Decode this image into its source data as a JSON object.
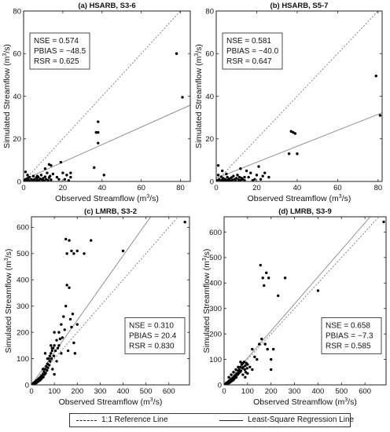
{
  "chart_data": [
    {
      "type": "scatter",
      "title": "(a) HSARB, S3-6",
      "xlabel": "Observed Streamflow (m3/s)",
      "ylabel": "Simulated Streamflow (m3/s)",
      "xlim": [
        0,
        85
      ],
      "ylim": [
        0,
        80
      ],
      "xticks": [
        0,
        20,
        40,
        60,
        80
      ],
      "yticks": [
        0,
        20,
        40,
        60,
        80
      ],
      "stats": [
        "NSE = 0.574",
        "PBIAS = −48.5",
        "RSR = 0.625"
      ],
      "stats_corner": "top-left",
      "regression": {
        "slope": 0.412,
        "intercept": 0.8
      },
      "points": [
        [
          0.5,
          0.5
        ],
        [
          1,
          1
        ],
        [
          1.5,
          0.3
        ],
        [
          2,
          1.5
        ],
        [
          2.5,
          0.8
        ],
        [
          3,
          0.2
        ],
        [
          3,
          2
        ],
        [
          4,
          1
        ],
        [
          4.5,
          0.5
        ],
        [
          5,
          2.5
        ],
        [
          5.5,
          1
        ],
        [
          6,
          0.3
        ],
        [
          6.5,
          1.8
        ],
        [
          7,
          0.8
        ],
        [
          7.5,
          2
        ],
        [
          8,
          0.5
        ],
        [
          8.5,
          1.2
        ],
        [
          9,
          3
        ],
        [
          9.5,
          0.8
        ],
        [
          10,
          1.5
        ],
        [
          10.5,
          0.3
        ],
        [
          11,
          2.2
        ],
        [
          11.5,
          1
        ],
        [
          12,
          4
        ],
        [
          12.5,
          0.5
        ],
        [
          13,
          1.8
        ],
        [
          13.5,
          2.5
        ],
        [
          14,
          0.8
        ],
        [
          1,
          4.5
        ],
        [
          2,
          3
        ],
        [
          7,
          2.5
        ],
        [
          11,
          6
        ],
        [
          13,
          8
        ],
        [
          14,
          7.5
        ],
        [
          15,
          3.5
        ],
        [
          17,
          2
        ],
        [
          18,
          1
        ],
        [
          19,
          9
        ],
        [
          20,
          4
        ],
        [
          21,
          1
        ],
        [
          22,
          3
        ],
        [
          23,
          0.5
        ],
        [
          24,
          4
        ],
        [
          24,
          2
        ],
        [
          36,
          6.5
        ],
        [
          37,
          23
        ],
        [
          38,
          28
        ],
        [
          38,
          23
        ],
        [
          38,
          18
        ],
        [
          41,
          3
        ],
        [
          78,
          60
        ],
        [
          81,
          39.5
        ]
      ]
    },
    {
      "type": "scatter",
      "title": "(b) HSARB, S5-7",
      "xlabel": "Observed Streamflow (m3/s)",
      "ylabel": "Simulated Streamflow (m3/s)",
      "xlim": [
        0,
        82
      ],
      "ylim": [
        0,
        80
      ],
      "xticks": [
        0,
        20,
        40,
        60,
        80
      ],
      "yticks": [
        0,
        20,
        40,
        60,
        80
      ],
      "stats": [
        "NSE = 0.581",
        "PBIAS = −40.0",
        "RSR = 0.647"
      ],
      "stats_corner": "top-left",
      "regression": {
        "slope": 0.375,
        "intercept": 1.5
      },
      "points": [
        [
          0.5,
          0.5
        ],
        [
          1,
          7.5
        ],
        [
          1.5,
          1
        ],
        [
          2,
          0.3
        ],
        [
          2.5,
          2.2
        ],
        [
          3,
          0.8
        ],
        [
          3.5,
          1.5
        ],
        [
          4,
          0.2
        ],
        [
          4.5,
          1
        ],
        [
          5,
          0.5
        ],
        [
          5.5,
          2
        ],
        [
          6,
          0.8
        ],
        [
          6.5,
          1.2
        ],
        [
          7,
          0.3
        ],
        [
          7.5,
          1.8
        ],
        [
          8,
          0.6
        ],
        [
          8.5,
          2.5
        ],
        [
          9,
          1
        ],
        [
          9.5,
          0.4
        ],
        [
          10,
          1.5
        ],
        [
          10.5,
          3
        ],
        [
          11,
          0.8
        ],
        [
          11.5,
          2
        ],
        [
          12,
          0.5
        ],
        [
          12.5,
          1.6
        ],
        [
          13,
          1
        ],
        [
          14,
          0.5
        ],
        [
          1,
          3
        ],
        [
          3,
          5
        ],
        [
          5,
          3.5
        ],
        [
          12,
          6
        ],
        [
          14,
          2
        ],
        [
          15,
          5
        ],
        [
          16,
          2
        ],
        [
          17,
          4
        ],
        [
          18,
          0.5
        ],
        [
          19,
          1
        ],
        [
          20,
          3
        ],
        [
          21,
          7
        ],
        [
          22,
          1
        ],
        [
          23,
          2.5
        ],
        [
          24,
          4
        ],
        [
          26,
          2
        ],
        [
          36,
          13
        ],
        [
          37,
          23.5
        ],
        [
          38,
          23
        ],
        [
          39,
          22.5
        ],
        [
          40,
          13
        ],
        [
          79,
          49.5
        ],
        [
          81,
          31
        ]
      ]
    },
    {
      "type": "scatter",
      "title": "(c) LMRB, S3-2",
      "xlabel": "Observed Streamflow (m3/s)",
      "ylabel": "Simulated Streamflow (m3/s)",
      "xlim": [
        0,
        690
      ],
      "ylim": [
        0,
        640
      ],
      "xticks": [
        0,
        100,
        200,
        300,
        400,
        500,
        600
      ],
      "yticks": [
        0,
        100,
        200,
        300,
        400,
        500,
        600
      ],
      "stats": [
        "NSE = 0.310",
        "PBIAS = 20.4",
        "RSR = 0.830"
      ],
      "stats_corner": "right",
      "regression": {
        "slope": 1.23,
        "intercept": 0
      },
      "points": [
        [
          5,
          2
        ],
        [
          8,
          5
        ],
        [
          10,
          8
        ],
        [
          12,
          3
        ],
        [
          15,
          10
        ],
        [
          18,
          6
        ],
        [
          20,
          15
        ],
        [
          22,
          8
        ],
        [
          25,
          18
        ],
        [
          28,
          12
        ],
        [
          30,
          22
        ],
        [
          32,
          15
        ],
        [
          35,
          25
        ],
        [
          38,
          18
        ],
        [
          40,
          30
        ],
        [
          42,
          22
        ],
        [
          45,
          35
        ],
        [
          48,
          28
        ],
        [
          50,
          40
        ],
        [
          52,
          30
        ],
        [
          55,
          50
        ],
        [
          58,
          40
        ],
        [
          60,
          60
        ],
        [
          62,
          45
        ],
        [
          65,
          70
        ],
        [
          68,
          55
        ],
        [
          70,
          80
        ],
        [
          72,
          65
        ],
        [
          75,
          100
        ],
        [
          78,
          75
        ],
        [
          80,
          110
        ],
        [
          82,
          90
        ],
        [
          85,
          120
        ],
        [
          88,
          100
        ],
        [
          90,
          130
        ],
        [
          92,
          60
        ],
        [
          95,
          140
        ],
        [
          98,
          110
        ],
        [
          100,
          150
        ],
        [
          105,
          130
        ],
        [
          110,
          170
        ],
        [
          115,
          140
        ],
        [
          120,
          200
        ],
        [
          125,
          175
        ],
        [
          130,
          230
        ],
        [
          135,
          180
        ],
        [
          140,
          260
        ],
        [
          145,
          210
        ],
        [
          150,
          300
        ],
        [
          155,
          380
        ],
        [
          160,
          130
        ],
        [
          165,
          370
        ],
        [
          170,
          250
        ],
        [
          175,
          220
        ],
        [
          180,
          270
        ],
        [
          185,
          160
        ],
        [
          190,
          120
        ],
        [
          200,
          230
        ],
        [
          50,
          60
        ],
        [
          60,
          120
        ],
        [
          70,
          100
        ],
        [
          80,
          90
        ],
        [
          85,
          150
        ],
        [
          90,
          140
        ],
        [
          100,
          40
        ],
        [
          100,
          200
        ],
        [
          110,
          90
        ],
        [
          120,
          150
        ],
        [
          130,
          120
        ],
        [
          150,
          555
        ],
        [
          155,
          500
        ],
        [
          165,
          550
        ],
        [
          175,
          510
        ],
        [
          185,
          500
        ],
        [
          200,
          510
        ],
        [
          230,
          500
        ],
        [
          260,
          550
        ],
        [
          400,
          510
        ],
        [
          670,
          620
        ]
      ]
    },
    {
      "type": "scatter",
      "title": "(d) LMRB, S3-9",
      "xlabel": "Observed Streamflow (m3/s)",
      "ylabel": "Simulated Streamflow (m3/s)",
      "xlim": [
        0,
        690
      ],
      "ylim": [
        0,
        660
      ],
      "xticks": [
        0,
        100,
        200,
        300,
        400,
        500,
        600
      ],
      "yticks": [
        0,
        100,
        200,
        300,
        400,
        500,
        600
      ],
      "stats": [
        "NSE = 0.658",
        "PBIAS = −7.3",
        "RSR = 0.585"
      ],
      "stats_corner": "right",
      "regression": {
        "slope": 1.06,
        "intercept": 0
      },
      "points": [
        [
          5,
          2
        ],
        [
          8,
          5
        ],
        [
          10,
          8
        ],
        [
          12,
          3
        ],
        [
          15,
          10
        ],
        [
          18,
          6
        ],
        [
          20,
          15
        ],
        [
          22,
          8
        ],
        [
          25,
          18
        ],
        [
          28,
          12
        ],
        [
          30,
          22
        ],
        [
          32,
          15
        ],
        [
          35,
          25
        ],
        [
          38,
          18
        ],
        [
          40,
          30
        ],
        [
          42,
          22
        ],
        [
          45,
          35
        ],
        [
          48,
          28
        ],
        [
          50,
          40
        ],
        [
          52,
          30
        ],
        [
          55,
          45
        ],
        [
          58,
          40
        ],
        [
          60,
          55
        ],
        [
          62,
          45
        ],
        [
          65,
          60
        ],
        [
          68,
          50
        ],
        [
          70,
          70
        ],
        [
          72,
          55
        ],
        [
          75,
          80
        ],
        [
          78,
          65
        ],
        [
          80,
          85
        ],
        [
          82,
          70
        ],
        [
          85,
          90
        ],
        [
          88,
          60
        ],
        [
          90,
          75
        ],
        [
          92,
          50
        ],
        [
          95,
          85
        ],
        [
          98,
          65
        ],
        [
          100,
          80
        ],
        [
          20,
          30
        ],
        [
          30,
          40
        ],
        [
          40,
          50
        ],
        [
          50,
          60
        ],
        [
          60,
          70
        ],
        [
          70,
          90
        ],
        [
          80,
          40
        ],
        [
          90,
          30
        ],
        [
          100,
          45
        ],
        [
          110,
          70
        ],
        [
          120,
          60
        ],
        [
          120,
          140
        ],
        [
          130,
          110
        ],
        [
          140,
          100
        ],
        [
          150,
          160
        ],
        [
          155,
          470
        ],
        [
          160,
          180
        ],
        [
          165,
          420
        ],
        [
          170,
          390
        ],
        [
          175,
          160
        ],
        [
          180,
          440
        ],
        [
          185,
          140
        ],
        [
          190,
          420
        ],
        [
          200,
          60
        ],
        [
          200,
          100
        ],
        [
          210,
          140
        ],
        [
          230,
          350
        ],
        [
          260,
          420
        ],
        [
          400,
          370
        ],
        [
          680,
          640
        ]
      ]
    }
  ],
  "legend": {
    "items": [
      "1:1 Reference Line",
      "Least-Square Regression Line"
    ]
  }
}
